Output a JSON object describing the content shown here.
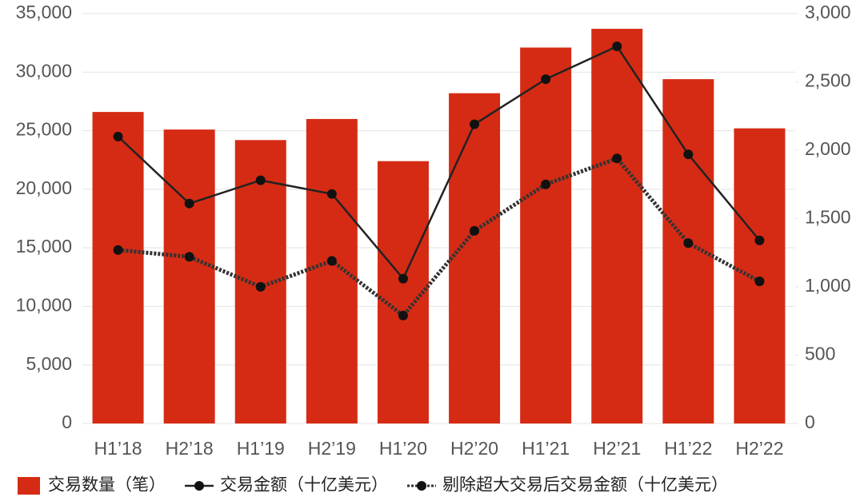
{
  "chart_data": {
    "type": "bar_line",
    "categories": [
      "H1’18",
      "H2’18",
      "H1’19",
      "H2’19",
      "H1’20",
      "H2’20",
      "H1’21",
      "H2’21",
      "H1’22",
      "H2’22"
    ],
    "series": [
      {
        "name": "交易数量（笔）",
        "type": "bar",
        "color": "#d52b14",
        "values": [
          26600,
          25100,
          24200,
          26000,
          22400,
          28200,
          32100,
          33700,
          29400,
          25200
        ]
      },
      {
        "name": "交易金额（十亿美元）",
        "type": "line",
        "axis": "y2",
        "color": "#222222",
        "dash": "solid",
        "values": [
          2100,
          1610,
          1780,
          1680,
          1060,
          2190,
          2520,
          2760,
          1970,
          1340
        ]
      },
      {
        "name": "剔除超大交易后交易金额（十亿美元）",
        "type": "line",
        "axis": "y2",
        "color": "#333333",
        "dash": "dotted",
        "values": [
          1270,
          1220,
          1000,
          1190,
          790,
          1410,
          1750,
          1940,
          1320,
          1040
        ]
      }
    ],
    "ylim": [
      0,
      35000
    ],
    "yticks": [
      0,
      {
        "value": 5000,
        "label": "5,000"
      },
      {
        "value": 10000,
        "label": "10,000"
      },
      {
        "value": 15000,
        "label": "15,000"
      },
      {
        "value": 20000,
        "label": "20,000"
      },
      {
        "value": 25000,
        "label": "25,000"
      },
      {
        "value": 30000,
        "label": "30,000"
      },
      {
        "value": 35000,
        "label": "35,000"
      }
    ],
    "y2lim": [
      0,
      3000
    ],
    "y2ticks": [
      0,
      500,
      {
        "value": 1000,
        "label": "1,000"
      },
      {
        "value": 1500,
        "label": "1,500"
      },
      {
        "value": 2000,
        "label": "2,000"
      },
      {
        "value": 2500,
        "label": "2,500"
      },
      {
        "value": 3000,
        "label": "3,000"
      }
    ],
    "grid": true,
    "legend": "bottom"
  }
}
